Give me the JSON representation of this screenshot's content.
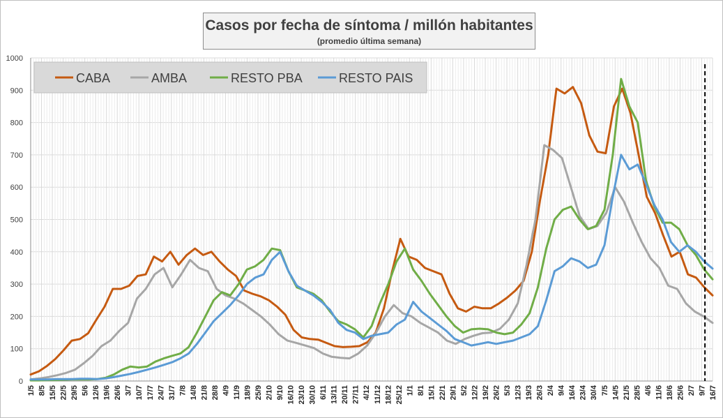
{
  "chart_data": {
    "type": "line",
    "title": "Casos por fecha de síntoma / millón habitantes",
    "subtitle": "(promedio última semana)",
    "xlabel": "",
    "ylabel": "",
    "ylim": [
      0,
      1000
    ],
    "yticks": [
      0,
      100,
      200,
      300,
      400,
      500,
      600,
      700,
      800,
      900,
      1000
    ],
    "x_tick_labels": [
      "1/5",
      "8/5",
      "15/5",
      "22/5",
      "29/5",
      "5/6",
      "12/6",
      "19/6",
      "26/6",
      "3/7",
      "10/7",
      "17/7",
      "24/7",
      "31/7",
      "7/8",
      "14/8",
      "21/8",
      "28/8",
      "4/9",
      "11/9",
      "18/9",
      "25/9",
      "2/10",
      "9/10",
      "16/10",
      "23/10",
      "30/10",
      "6/11",
      "13/11",
      "20/11",
      "27/11",
      "4/12",
      "11/12",
      "18/12",
      "25/12",
      "1/1",
      "8/1",
      "15/1",
      "22/1",
      "29/1",
      "5/2",
      "12/2",
      "19/2",
      "26/2",
      "5/3",
      "12/3",
      "19/3",
      "26/3",
      "2/4",
      "9/4",
      "16/4",
      "23/4",
      "30/4",
      "7/5",
      "14/5",
      "21/5",
      "28/5",
      "4/6",
      "11/6",
      "18/6",
      "25/6",
      "2/7",
      "9/7",
      "16/7"
    ],
    "grid": true,
    "legend_position": "top-left",
    "vertical_marker_at": "9/7",
    "series": [
      {
        "name": "CABA",
        "color": "#c55a11",
        "values": [
          20,
          30,
          47,
          68,
          95,
          125,
          130,
          148,
          190,
          230,
          285,
          285,
          295,
          325,
          330,
          385,
          370,
          400,
          360,
          390,
          410,
          390,
          400,
          370,
          345,
          325,
          280,
          270,
          262,
          250,
          230,
          205,
          158,
          135,
          130,
          128,
          118,
          108,
          105,
          106,
          108,
          120,
          150,
          225,
          340,
          440,
          385,
          375,
          350,
          340,
          330,
          270,
          225,
          215,
          230,
          225,
          225,
          240,
          258,
          280,
          310,
          400,
          560,
          700,
          905,
          890,
          910,
          860,
          760,
          710,
          705,
          850,
          905,
          830,
          700,
          570,
          520,
          450,
          385,
          400,
          330,
          320,
          290,
          265
        ]
      },
      {
        "name": "AMBA",
        "color": "#a6a6a6",
        "values": [
          5,
          8,
          12,
          18,
          25,
          35,
          55,
          78,
          108,
          125,
          155,
          180,
          255,
          285,
          330,
          350,
          290,
          330,
          375,
          350,
          340,
          285,
          265,
          255,
          240,
          220,
          200,
          175,
          145,
          125,
          118,
          110,
          102,
          85,
          75,
          72,
          70,
          85,
          110,
          150,
          200,
          235,
          210,
          200,
          180,
          165,
          150,
          125,
          115,
          130,
          140,
          148,
          150,
          162,
          190,
          240,
          360,
          500,
          730,
          715,
          690,
          600,
          510,
          470,
          480,
          520,
          600,
          555,
          490,
          430,
          380,
          350,
          295,
          285,
          240,
          215,
          200,
          180
        ]
      },
      {
        "name": "RESTO PBA",
        "color": "#70ad47",
        "values": [
          2,
          2,
          3,
          3,
          4,
          5,
          5,
          5,
          6,
          10,
          20,
          35,
          45,
          42,
          45,
          60,
          70,
          78,
          85,
          105,
          150,
          200,
          250,
          275,
          265,
          300,
          345,
          355,
          375,
          410,
          405,
          340,
          290,
          280,
          270,
          250,
          215,
          185,
          175,
          160,
          135,
          170,
          240,
          300,
          370,
          410,
          345,
          310,
          270,
          235,
          200,
          170,
          150,
          160,
          162,
          160,
          150,
          145,
          150,
          175,
          210,
          290,
          410,
          500,
          530,
          540,
          500,
          470,
          480,
          530,
          700,
          935,
          850,
          800,
          620,
          540,
          490,
          490,
          470,
          420,
          390,
          345,
          315
        ]
      },
      {
        "name": "RESTO PAIS",
        "color": "#5b9bd5",
        "values": [
          5,
          5,
          5,
          6,
          6,
          6,
          7,
          7,
          6,
          8,
          12,
          17,
          22,
          28,
          35,
          42,
          50,
          58,
          70,
          85,
          115,
          150,
          185,
          210,
          235,
          265,
          300,
          320,
          330,
          375,
          400,
          340,
          295,
          280,
          265,
          245,
          220,
          180,
          158,
          150,
          130,
          140,
          145,
          150,
          175,
          190,
          245,
          215,
          195,
          175,
          155,
          130,
          120,
          110,
          115,
          120,
          115,
          120,
          125,
          135,
          145,
          170,
          250,
          340,
          355,
          380,
          370,
          350,
          360,
          420,
          570,
          700,
          655,
          670,
          610,
          545,
          500,
          430,
          400,
          420,
          400,
          370,
          348
        ]
      }
    ]
  }
}
